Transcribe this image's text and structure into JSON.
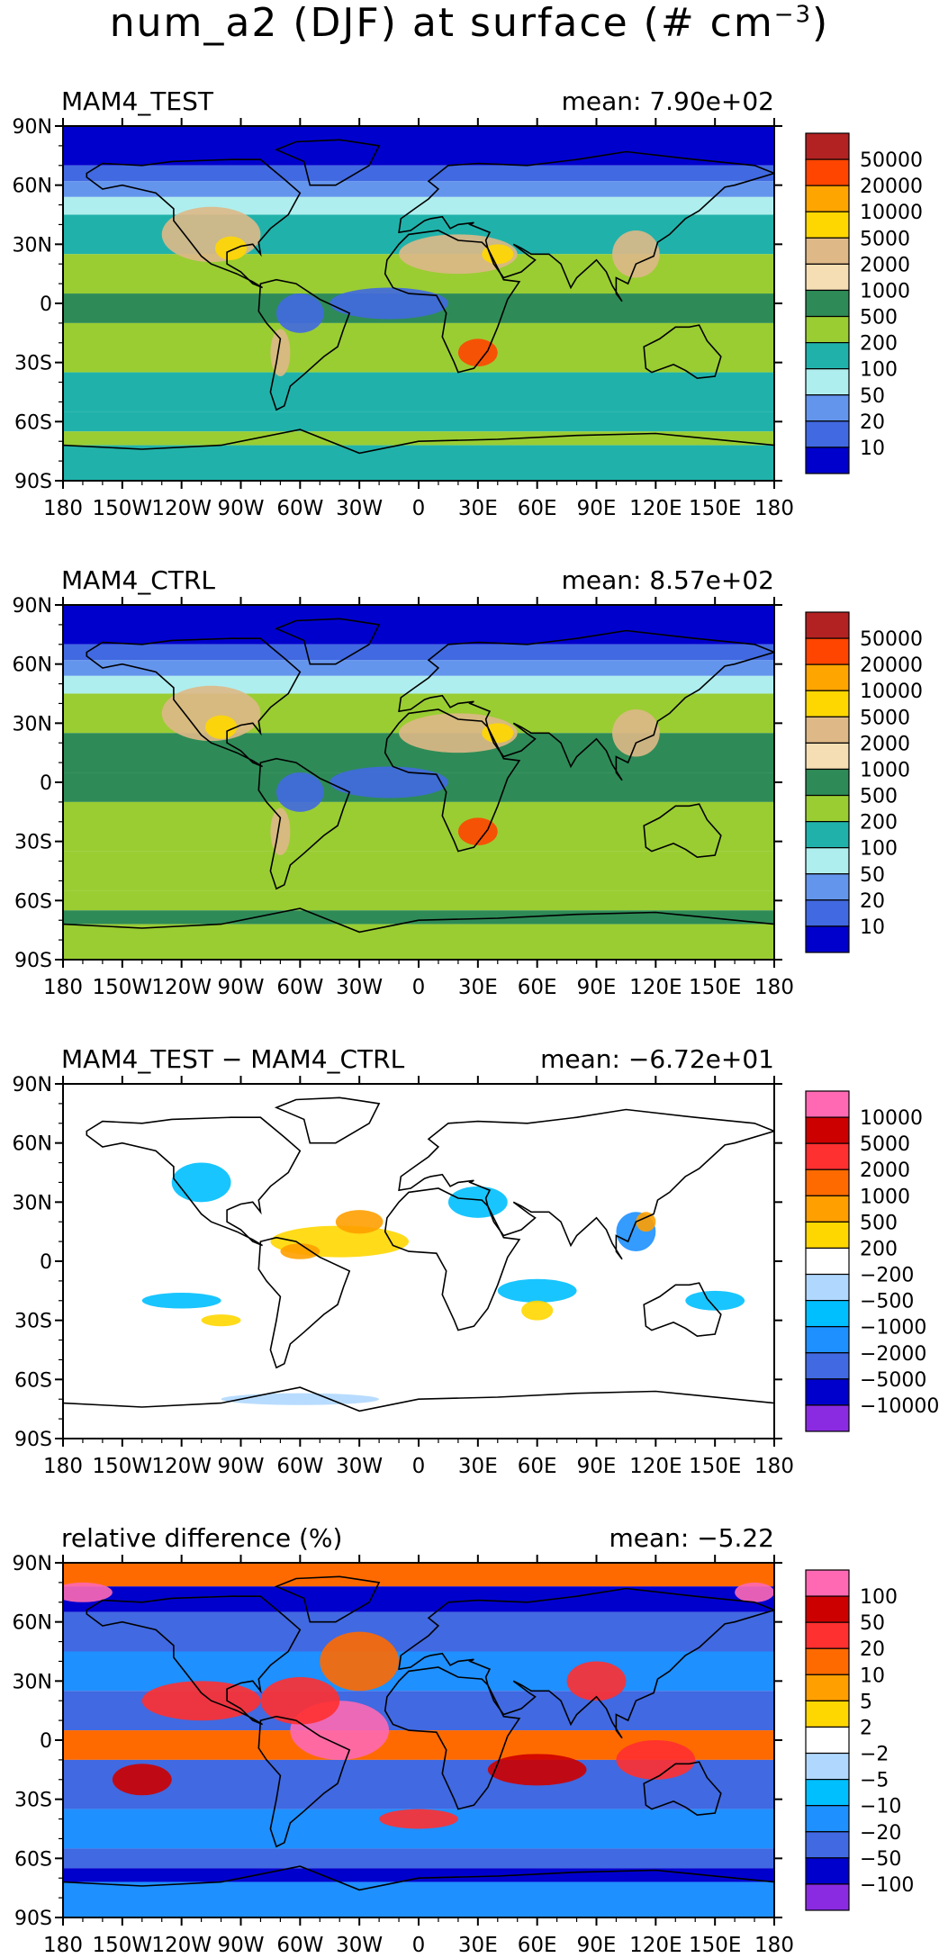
{
  "figure": {
    "title_main": "num_a2 (DJF) at surface (# cm",
    "title_exp": "−3",
    "title_close": ")"
  },
  "chart_data": [
    {
      "type": "heatmap",
      "title": "MAM4_TEST",
      "subtitle": "mean: 7.90e+02",
      "x_ticks": [
        "180",
        "150W",
        "120W",
        "90W",
        "60W",
        "30W",
        "0",
        "30E",
        "60E",
        "90E",
        "120E",
        "150E",
        "180"
      ],
      "y_ticks": [
        "90N",
        "60N",
        "30N",
        "0",
        "30S",
        "60S",
        "90S"
      ],
      "xlim": [
        -180,
        180
      ],
      "ylim": [
        -90,
        90
      ],
      "colorbar": {
        "labels": [
          "50000",
          "20000",
          "10000",
          "5000",
          "2000",
          "1000",
          "500",
          "200",
          "100",
          "50",
          "20",
          "10"
        ],
        "colors": [
          "#b22222",
          "#ff4500",
          "#ffa500",
          "#ffd700",
          "#deb887",
          "#f5deb3",
          "#2e8b57",
          "#9acd32",
          "#20b2aa",
          "#afeeee",
          "#6495ed",
          "#4169e1",
          "#0000cd"
        ]
      }
    },
    {
      "type": "heatmap",
      "title": "MAM4_CTRL",
      "subtitle": "mean: 8.57e+02",
      "x_ticks": [
        "180",
        "150W",
        "120W",
        "90W",
        "60W",
        "30W",
        "0",
        "30E",
        "60E",
        "90E",
        "120E",
        "150E",
        "180"
      ],
      "y_ticks": [
        "90N",
        "60N",
        "30N",
        "0",
        "30S",
        "60S",
        "90S"
      ],
      "xlim": [
        -180,
        180
      ],
      "ylim": [
        -90,
        90
      ],
      "colorbar": {
        "labels": [
          "50000",
          "20000",
          "10000",
          "5000",
          "2000",
          "1000",
          "500",
          "200",
          "100",
          "50",
          "20",
          "10"
        ],
        "colors": [
          "#b22222",
          "#ff4500",
          "#ffa500",
          "#ffd700",
          "#deb887",
          "#f5deb3",
          "#2e8b57",
          "#9acd32",
          "#20b2aa",
          "#afeeee",
          "#6495ed",
          "#4169e1",
          "#0000cd"
        ]
      }
    },
    {
      "type": "heatmap",
      "title": "MAM4_TEST − MAM4_CTRL",
      "subtitle": "mean: −6.72e+01",
      "x_ticks": [
        "180",
        "150W",
        "120W",
        "90W",
        "60W",
        "30W",
        "0",
        "30E",
        "60E",
        "90E",
        "120E",
        "150E",
        "180"
      ],
      "y_ticks": [
        "90N",
        "60N",
        "30N",
        "0",
        "30S",
        "60S",
        "90S"
      ],
      "xlim": [
        -180,
        180
      ],
      "ylim": [
        -90,
        90
      ],
      "colorbar": {
        "labels": [
          "10000",
          "5000",
          "2000",
          "1000",
          "500",
          "200",
          "−200",
          "−500",
          "−1000",
          "−2000",
          "−5000",
          "−10000"
        ],
        "colors": [
          "#ff69b4",
          "#cd0000",
          "#ff3030",
          "#ff6a00",
          "#ff9f00",
          "#ffd700",
          "#ffffff",
          "#b0d8ff",
          "#00bfff",
          "#1e90ff",
          "#4169e1",
          "#0000cd",
          "#8a2be2"
        ]
      }
    },
    {
      "type": "heatmap",
      "title": "relative difference (%)",
      "subtitle": "mean: −5.22",
      "x_ticks": [
        "180",
        "150W",
        "120W",
        "90W",
        "60W",
        "30W",
        "0",
        "30E",
        "60E",
        "90E",
        "120E",
        "150E",
        "180"
      ],
      "y_ticks": [
        "90N",
        "60N",
        "30N",
        "0",
        "30S",
        "60S",
        "90S"
      ],
      "xlim": [
        -180,
        180
      ],
      "ylim": [
        -90,
        90
      ],
      "colorbar": {
        "labels": [
          "100",
          "50",
          "20",
          "10",
          "5",
          "2",
          "−2",
          "−5",
          "−10",
          "−20",
          "−50",
          "−100"
        ],
        "colors": [
          "#ff69b4",
          "#cd0000",
          "#ff3030",
          "#ff6a00",
          "#ff9f00",
          "#ffd700",
          "#ffffff",
          "#b0d8ff",
          "#00bfff",
          "#1e90ff",
          "#4169e1",
          "#0000cd",
          "#8a2be2"
        ]
      }
    }
  ]
}
